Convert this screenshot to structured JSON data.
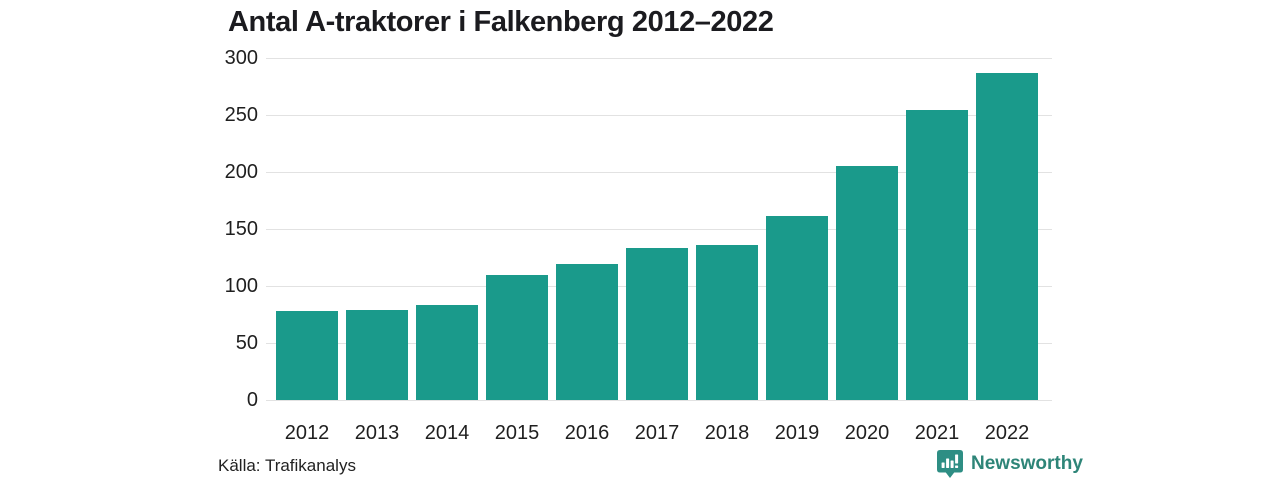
{
  "title": "Antal A-traktorer i Falkenberg 2012–2022",
  "source": "Källa: Trafikanalys",
  "logo": {
    "text": "Newsworthy",
    "icon": "speech-bubble-bar-chart"
  },
  "colors": {
    "bar": "#1a9a8b",
    "gridline": "#e2e2e2",
    "title": "#1b1b1f",
    "tick_label": "#1f1f1f",
    "logo_text": "#2e8578",
    "logo_icon": "#2e8e84",
    "background": "#ffffff"
  },
  "chart_data": {
    "type": "bar",
    "title": "Antal A-traktorer i Falkenberg 2012–2022",
    "categories": [
      "2012",
      "2013",
      "2014",
      "2015",
      "2016",
      "2017",
      "2018",
      "2019",
      "2020",
      "2021",
      "2022"
    ],
    "values": [
      78,
      79,
      83,
      110,
      119,
      133,
      136,
      161,
      205,
      254,
      287
    ],
    "xlabel": "",
    "ylabel": "",
    "ylim": [
      0,
      300
    ],
    "yticks": [
      0,
      50,
      100,
      150,
      200,
      250,
      300
    ],
    "grid": "horizontal",
    "legend": "none",
    "source": "Källa: Trafikanalys"
  }
}
